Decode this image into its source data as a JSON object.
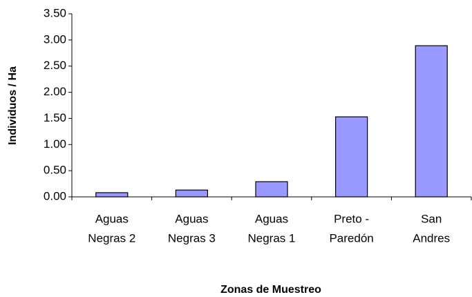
{
  "chart_data": {
    "type": "bar",
    "x_label": "Zonas de Muestreo",
    "y_label": "Individuos / Ha",
    "categories": [
      [
        "Aguas",
        "Negras 2"
      ],
      [
        "Aguas",
        "Negras 3"
      ],
      [
        "Aguas",
        "Negras 1"
      ],
      [
        "Preto -",
        "Paredón"
      ],
      [
        "San",
        "Andres"
      ]
    ],
    "values": [
      0.08,
      0.13,
      0.29,
      1.53,
      2.89
    ],
    "color": "#9999ff",
    "ylim": [
      0,
      3.5
    ],
    "yticks": [
      {
        "value": 0,
        "label": "0.00"
      },
      {
        "value": 0.5,
        "label": "0.50"
      },
      {
        "value": 1,
        "label": "1.00"
      },
      {
        "value": 1.5,
        "label": "1.50"
      },
      {
        "value": 2,
        "label": "2.00"
      },
      {
        "value": 2.5,
        "label": "2.50"
      },
      {
        "value": 3,
        "label": "3.00"
      },
      {
        "value": 3.5,
        "label": "3.50"
      }
    ],
    "grid": false
  }
}
